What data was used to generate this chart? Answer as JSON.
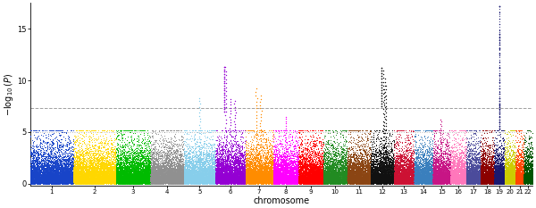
{
  "chromosomes": [
    1,
    2,
    3,
    4,
    5,
    6,
    7,
    8,
    9,
    10,
    11,
    12,
    13,
    14,
    15,
    16,
    17,
    18,
    19,
    20,
    21,
    22
  ],
  "chr_colors": [
    "#1844C8",
    "#FFD700",
    "#00BB00",
    "#909090",
    "#87CEEB",
    "#9400D3",
    "#FF8C00",
    "#FF00FF",
    "#FF0000",
    "#228B22",
    "#8B4513",
    "#111111",
    "#CC1133",
    "#3A7FBD",
    "#C71585",
    "#FF77BB",
    "#4B4B9B",
    "#8B0000",
    "#191970",
    "#CCCC00",
    "#FF4500",
    "#005500"
  ],
  "chr_sizes": [
    249,
    242,
    198,
    191,
    181,
    171,
    159,
    146,
    141,
    136,
    135,
    133,
    115,
    107,
    102,
    90,
    81,
    78,
    59,
    63,
    48,
    51
  ],
  "genome_wide_sig": 7.3,
  "suggestive_sig": 5.0,
  "ylim_max": 17.5,
  "ylabel": "$-\\log_{10}(P)$",
  "xlabel": "chromosome",
  "background_color": "#ffffff",
  "point_size": 0.5,
  "snp_density": 30,
  "max_base_pval": 5.2
}
